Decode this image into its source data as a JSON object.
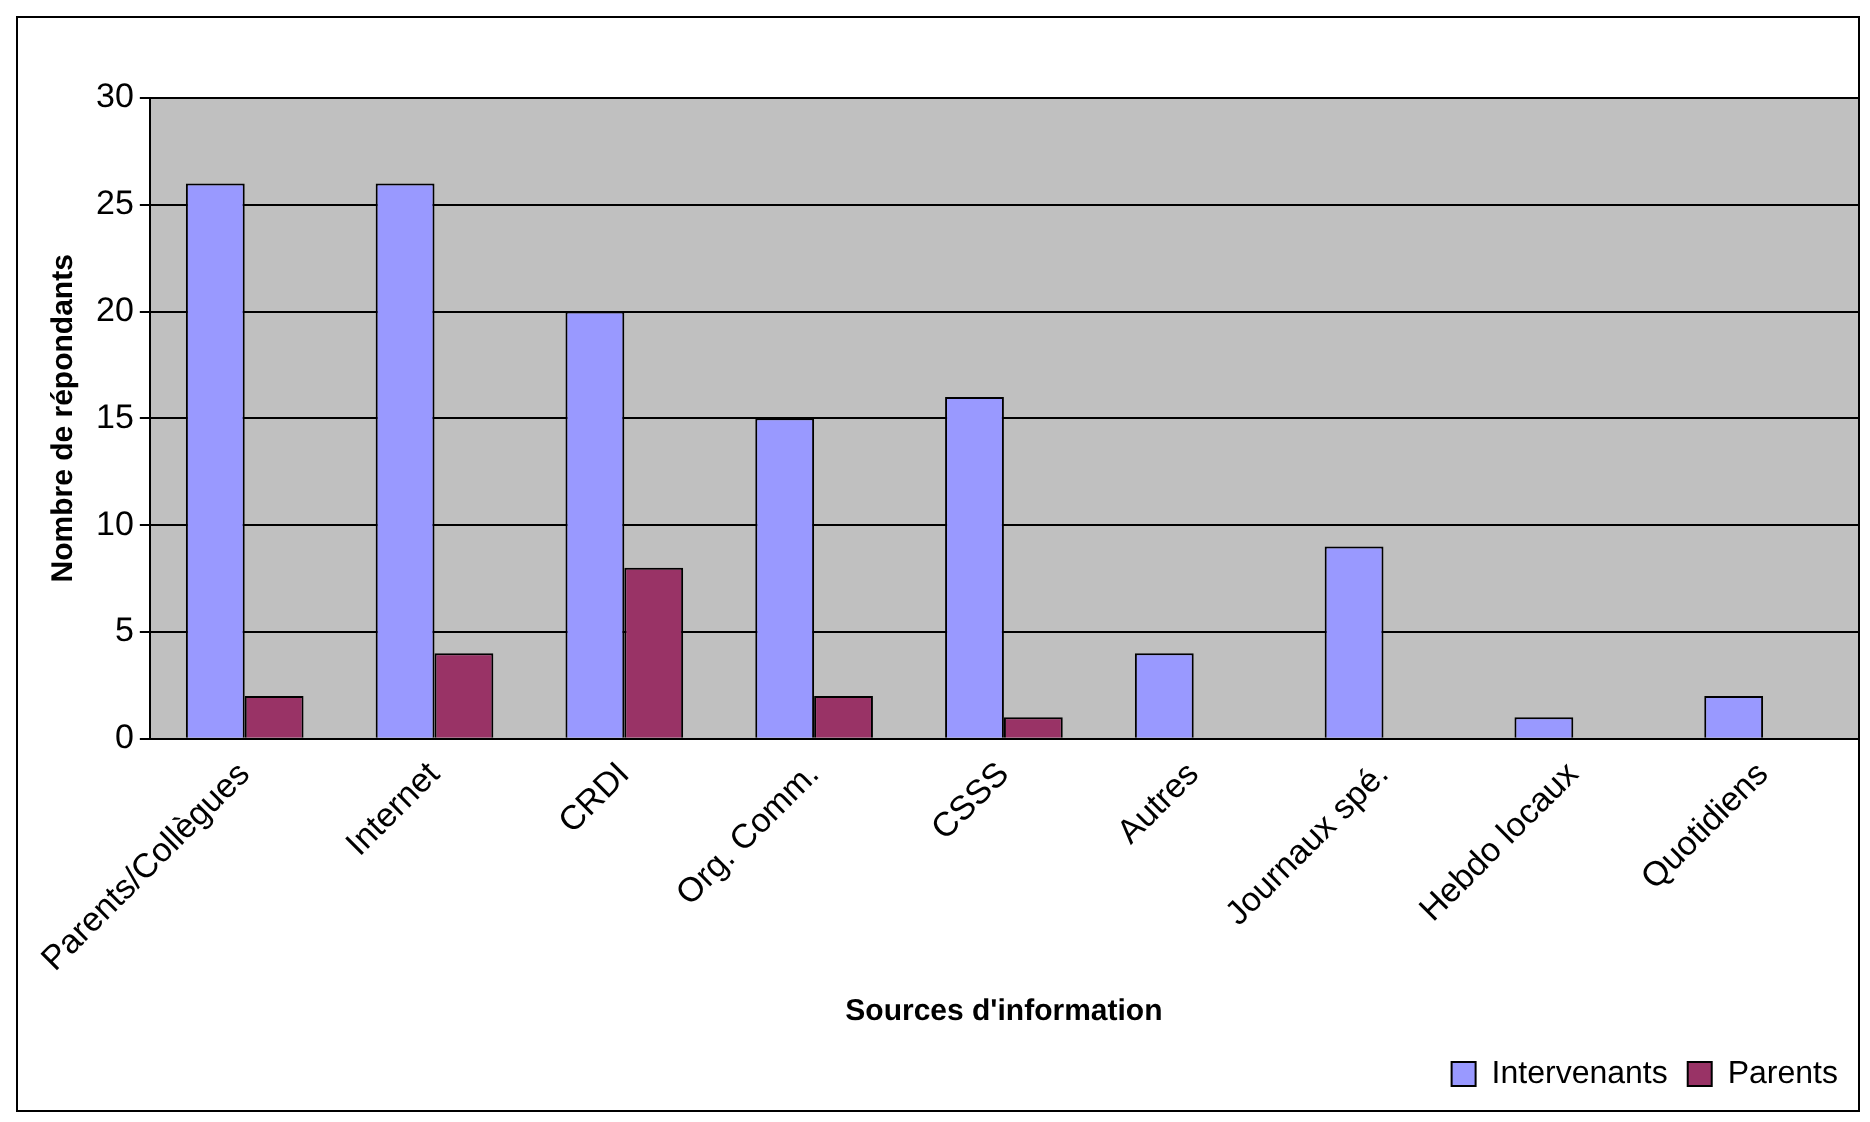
{
  "chart_data": {
    "type": "bar",
    "xlabel": "Sources d'information",
    "ylabel": "Nombre de répondants",
    "categories": [
      "Parents/Collègues",
      "Internet",
      "CRDI",
      "Org. Comm.",
      "CSSS",
      "Autres",
      "Journaux spé.",
      "Hebdo locaux",
      "Quotidiens"
    ],
    "series": [
      {
        "name": "Intervenants",
        "color": "#9999ff",
        "values": [
          26,
          26,
          20,
          15,
          16,
          4,
          9,
          1,
          2
        ]
      },
      {
        "name": "Parents",
        "color": "#993366",
        "values": [
          2,
          4,
          8,
          2,
          1,
          0,
          0,
          0,
          0
        ]
      }
    ],
    "ylim": [
      0,
      30
    ],
    "yticks": [
      0,
      5,
      10,
      15,
      20,
      25,
      30
    ],
    "grid": "y",
    "legend": "bottom right"
  }
}
